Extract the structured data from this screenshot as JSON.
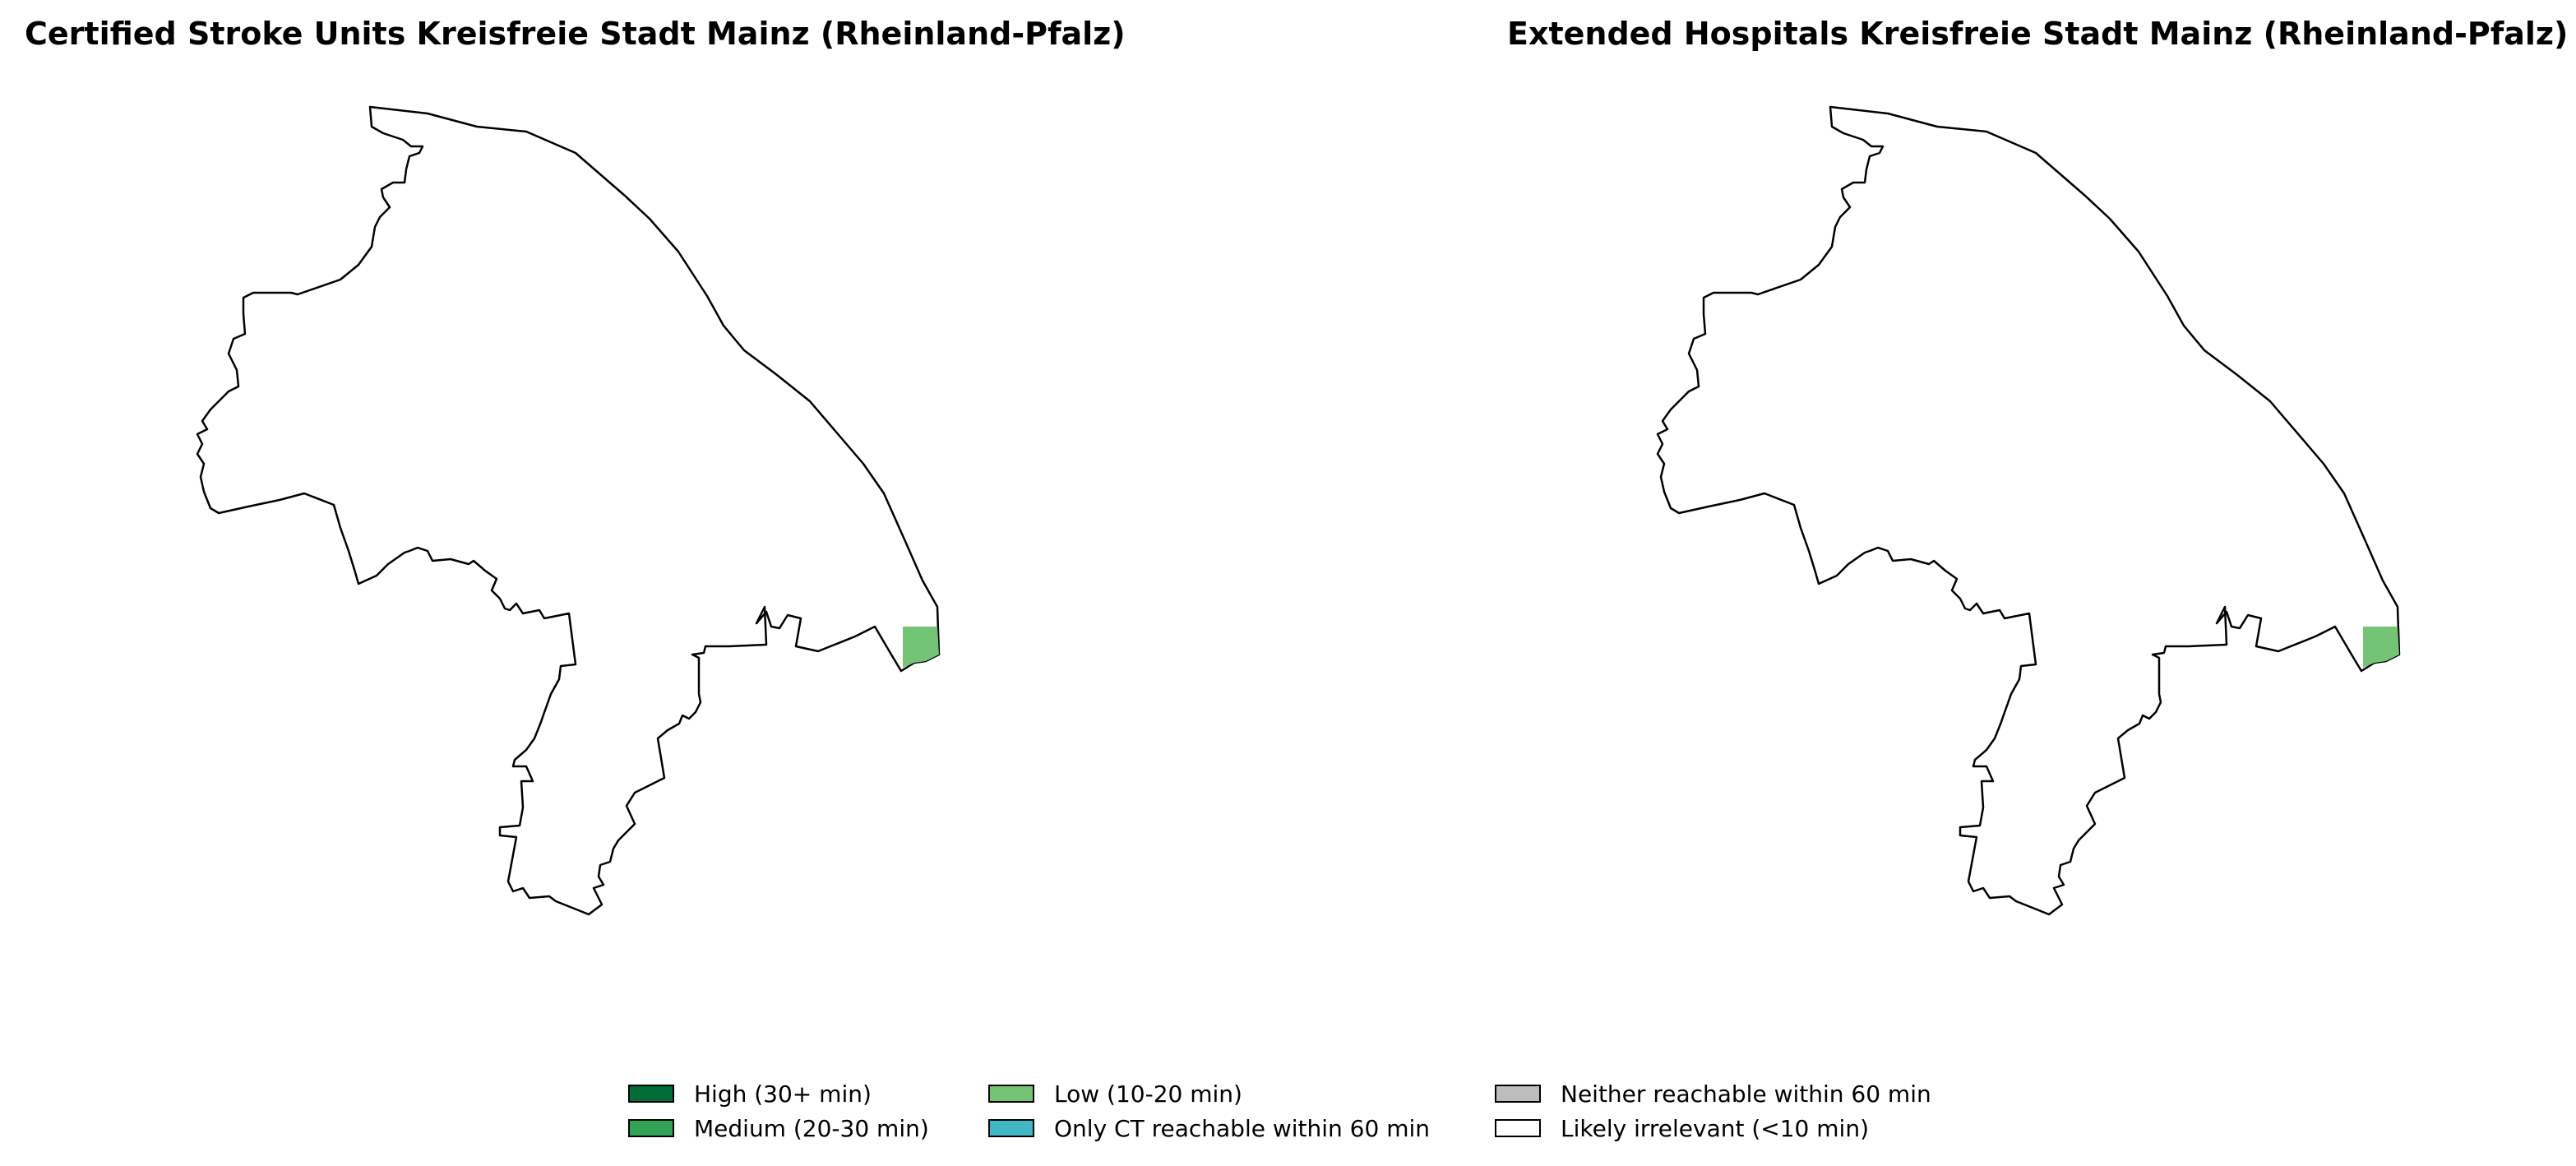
{
  "maps": [
    {
      "title": "Certified Stroke Units Kreisfreie Stadt Mainz (Rheinland-Pfalz)",
      "region_fill": "#ffffff",
      "highlight_category": "low"
    },
    {
      "title": "Extended Hospitals Kreisfreie Stadt Mainz (Rheinland-Pfalz)",
      "region_fill": "#ffffff",
      "highlight_category": "low"
    }
  ],
  "legend": {
    "items": [
      {
        "key": "high",
        "label": "High (30+ min)",
        "color": "#006d38"
      },
      {
        "key": "medium",
        "label": "Medium (20-30 min)",
        "color": "#31a354"
      },
      {
        "key": "low",
        "label": "Low (10-20 min)",
        "color": "#74c476"
      },
      {
        "key": "ct_only",
        "label": "Only CT reachable within 60 min",
        "color": "#41b6c4"
      },
      {
        "key": "neither",
        "label": "Neither reachable within 60 min",
        "color": "#bdbdbd"
      },
      {
        "key": "irrelevant",
        "label": "Likely irrelevant (<10 min)",
        "color": "#ffffff"
      }
    ]
  }
}
